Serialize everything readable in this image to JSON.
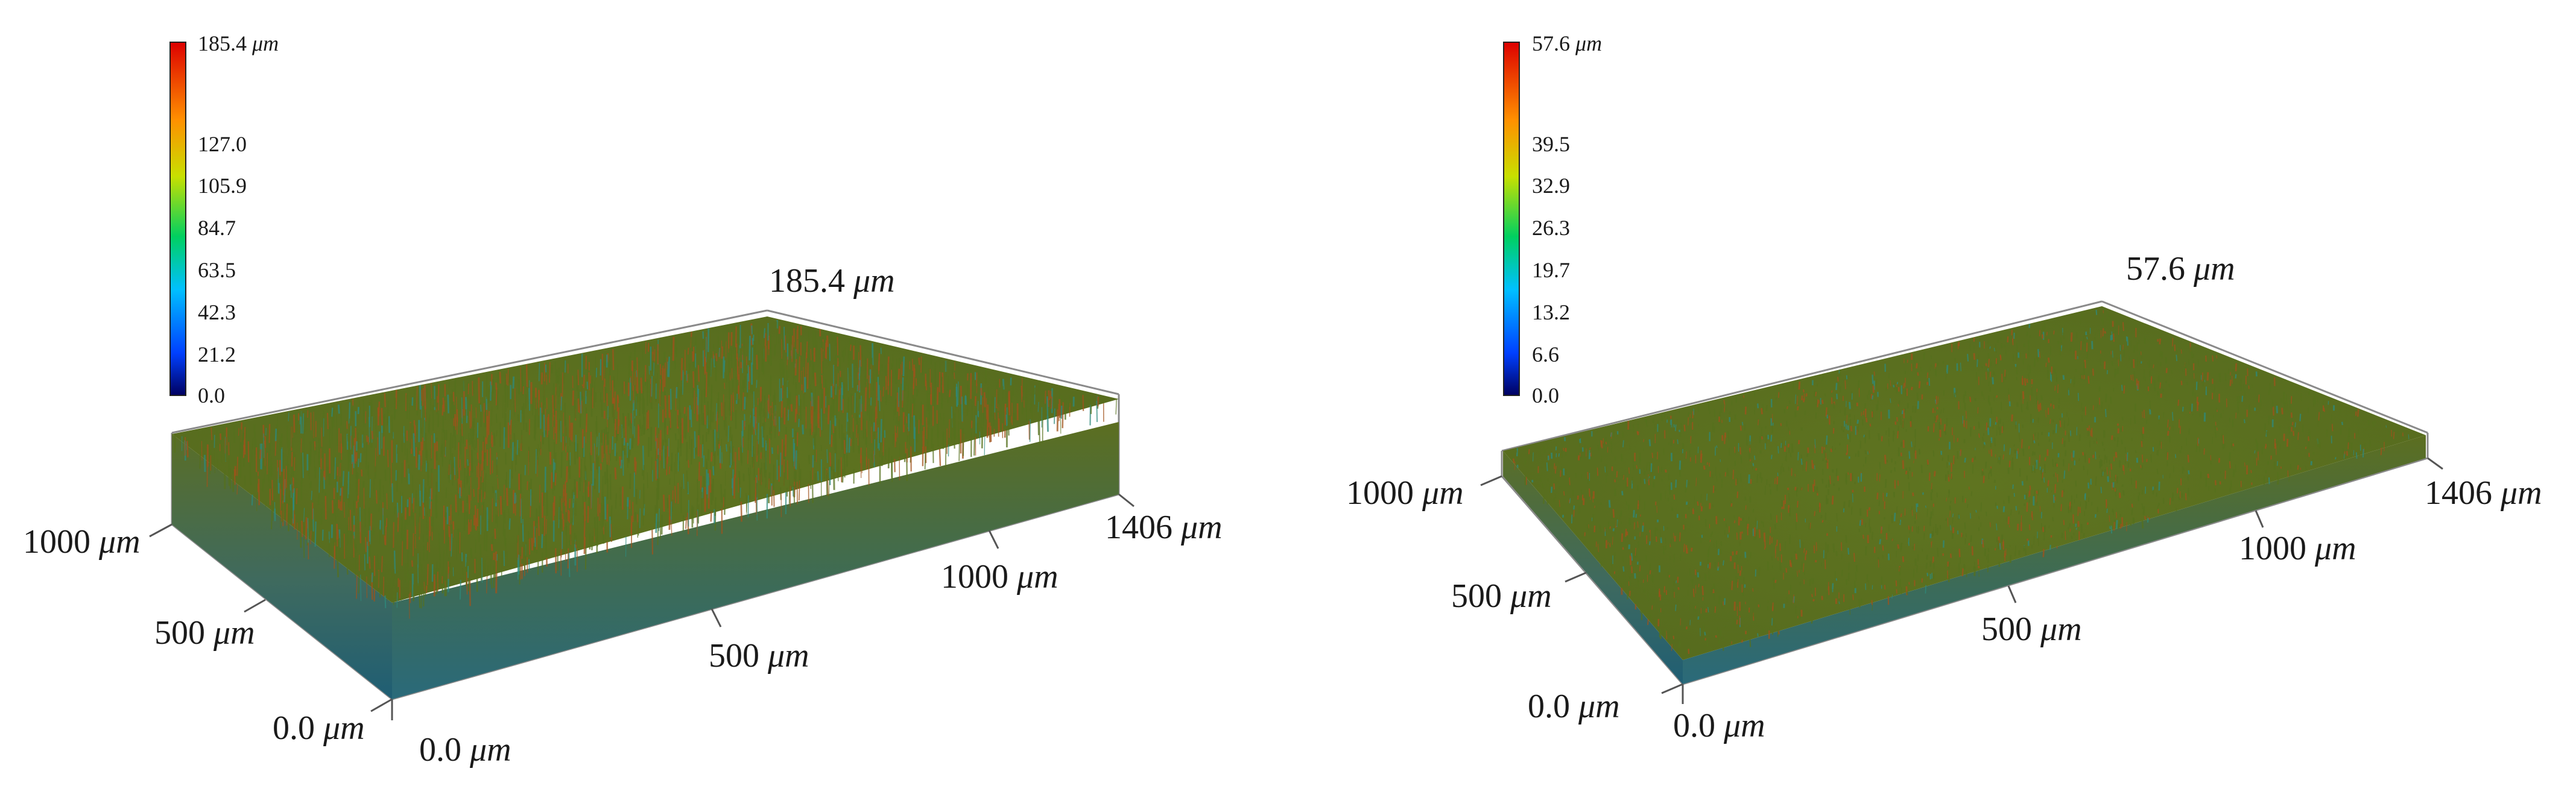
{
  "panels": [
    {
      "id": "left",
      "colorbar": {
        "max_text": "185.4",
        "max_unit": "μm",
        "tick_labels": [
          "127.0",
          "105.9",
          "84.7",
          "63.5",
          "42.3",
          "21.2",
          "0.0"
        ]
      },
      "height_max_text": "185.4",
      "height_max_unit": "μm",
      "x_axis": {
        "origin_text": "0.0",
        "origin_unit": "μm",
        "ticks": [
          {
            "text": "500",
            "unit": "μm"
          },
          {
            "text": "1000",
            "unit": "μm"
          },
          {
            "text": "1406",
            "unit": "μm"
          }
        ]
      },
      "y_axis": {
        "origin_text": "0.0",
        "origin_unit": "μm",
        "ticks": [
          {
            "text": "500",
            "unit": "μm"
          },
          {
            "text": "1000",
            "unit": "μm"
          }
        ]
      },
      "height_range": [
        0.0,
        185.4
      ],
      "roughness": "high"
    },
    {
      "id": "right",
      "colorbar": {
        "max_text": "57.6",
        "max_unit": "μm",
        "tick_labels": [
          "39.5",
          "32.9",
          "26.3",
          "19.7",
          "13.2",
          "6.6",
          "0.0"
        ]
      },
      "height_max_text": "57.6",
      "height_max_unit": "μm",
      "x_axis": {
        "origin_text": "0.0",
        "origin_unit": "μm",
        "ticks": [
          {
            "text": "500",
            "unit": "μm"
          },
          {
            "text": "1000",
            "unit": "μm"
          },
          {
            "text": "1406",
            "unit": "μm"
          }
        ]
      },
      "y_axis": {
        "origin_text": "0.0",
        "origin_unit": "μm",
        "ticks": [
          {
            "text": "500",
            "unit": "μm"
          },
          {
            "text": "1000",
            "unit": "μm"
          }
        ]
      },
      "height_range": [
        0.0,
        57.6
      ],
      "roughness": "low"
    }
  ],
  "colors": {
    "colormap": [
      "#000080",
      "#0050ff",
      "#00c8ff",
      "#00e070",
      "#d8e000",
      "#ff9800",
      "#e00000"
    ],
    "surface_green": "#55701e",
    "surface_orange": "#a0521b",
    "surface_teal": "#2e8a7c",
    "axis_line": "#777777"
  }
}
